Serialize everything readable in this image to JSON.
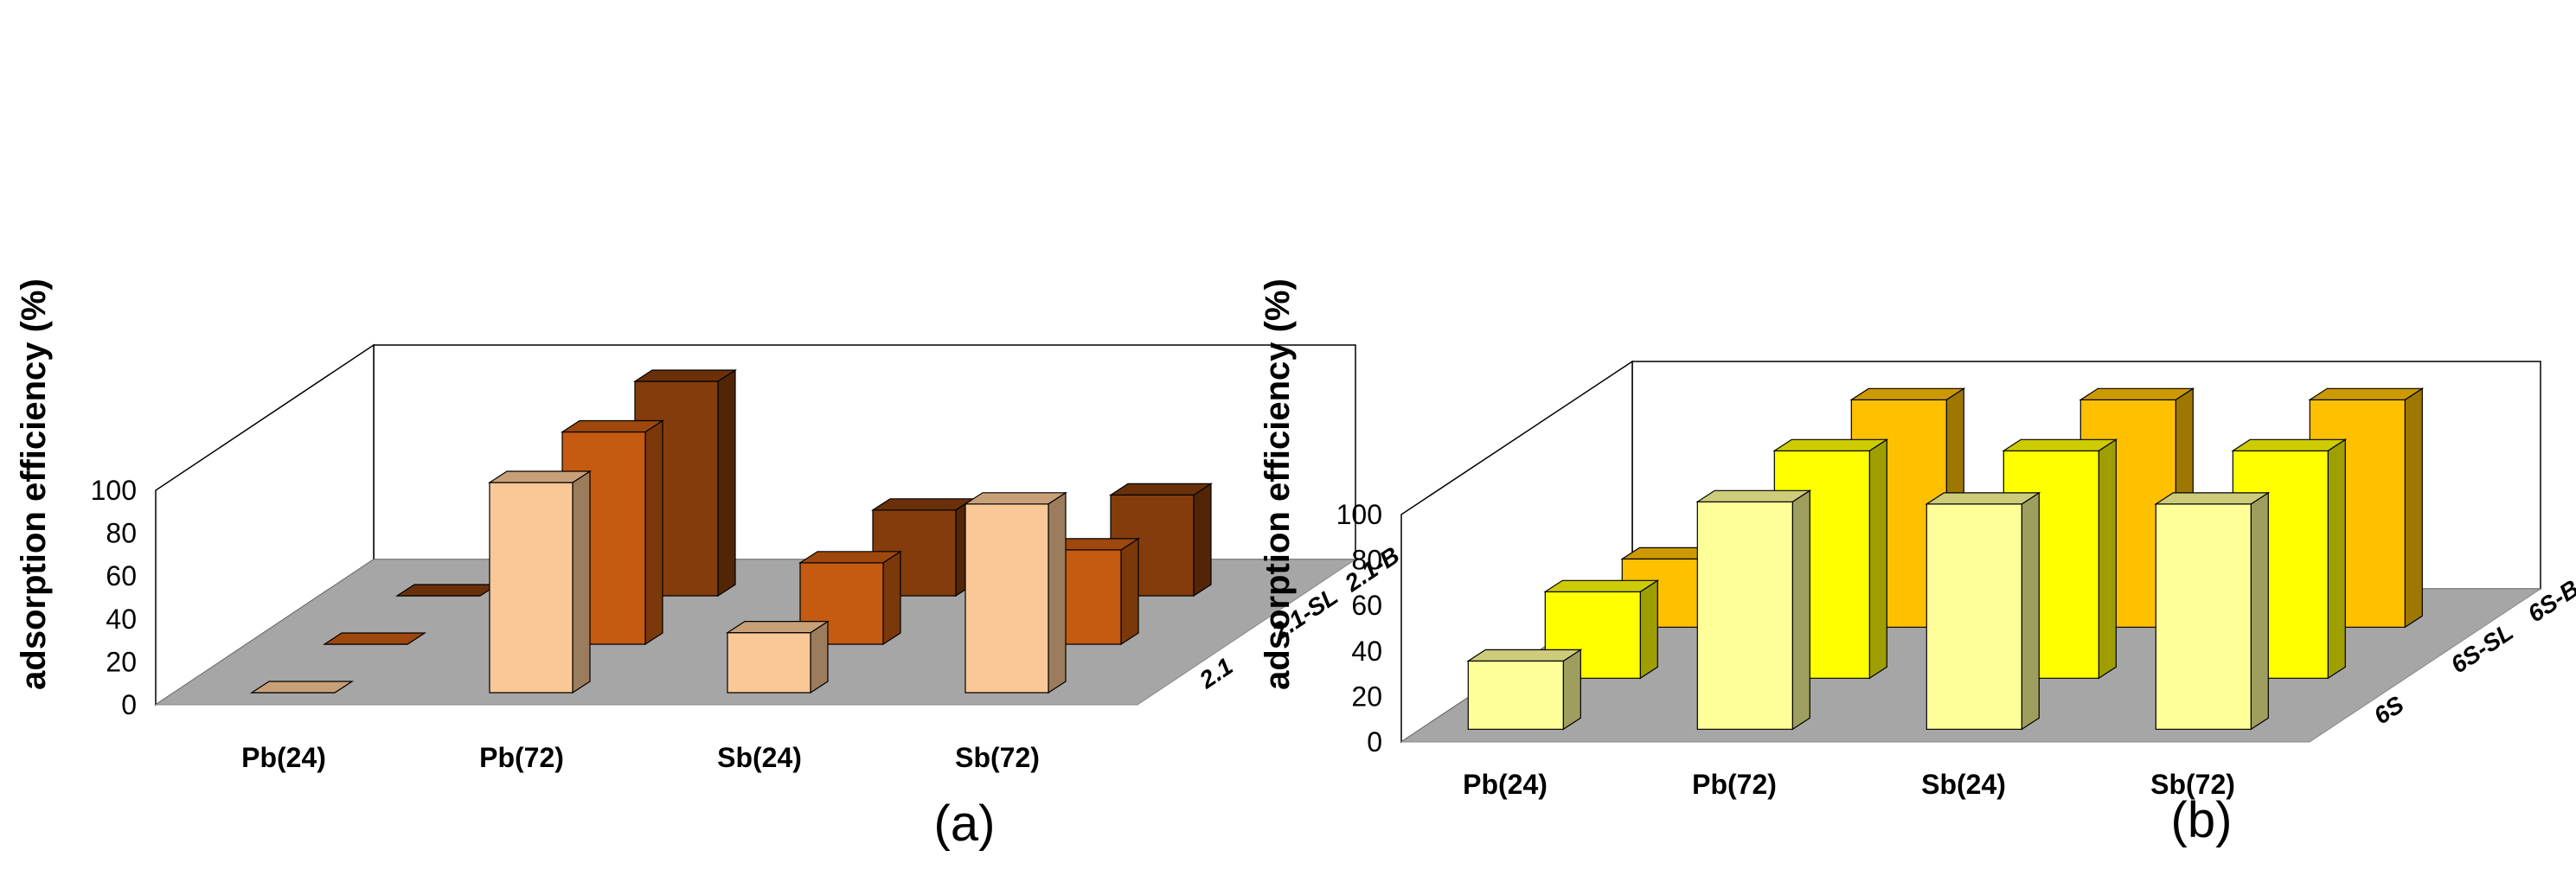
{
  "chart_data": [
    {
      "type": "bar",
      "subtype": "3d-column",
      "panel_label": "(a)",
      "title": "",
      "xlabel": "",
      "ylabel": "adsorption efficiency (%)",
      "ylim": [
        0,
        100
      ],
      "yticks": [
        "0",
        "20",
        "40",
        "60",
        "80",
        "100"
      ],
      "categories": [
        "Pb(24)",
        "Pb(72)",
        "Sb(24)",
        "Sb(72)"
      ],
      "series": [
        {
          "name": "2.1",
          "values": [
            0,
            98,
            28,
            88
          ],
          "color": "#FAC896"
        },
        {
          "name": "2.1-SL",
          "values": [
            0,
            99,
            38,
            44
          ],
          "color": "#C55A11"
        },
        {
          "name": "2.1-B",
          "values": [
            0,
            100,
            40,
            47
          ],
          "color": "#843C0C"
        }
      ]
    },
    {
      "type": "bar",
      "subtype": "3d-column",
      "panel_label": "(b)",
      "title": "",
      "xlabel": "",
      "ylabel": "adsorption efficiency (%)",
      "ylim": [
        0,
        100
      ],
      "yticks": [
        "0",
        "20",
        "40",
        "60",
        "80",
        "100"
      ],
      "categories": [
        "Pb(24)",
        "Pb(72)",
        "Sb(24)",
        "Sb(72)"
      ],
      "series": [
        {
          "name": "6S",
          "values": [
            30,
            100,
            99,
            99
          ],
          "color": "#FFFF99"
        },
        {
          "name": "6S-SL",
          "values": [
            38,
            100,
            100,
            100
          ],
          "color": "#FFFF00"
        },
        {
          "name": "6S-B",
          "values": [
            30,
            100,
            100,
            100
          ],
          "color": "#FFC000"
        }
      ]
    }
  ]
}
